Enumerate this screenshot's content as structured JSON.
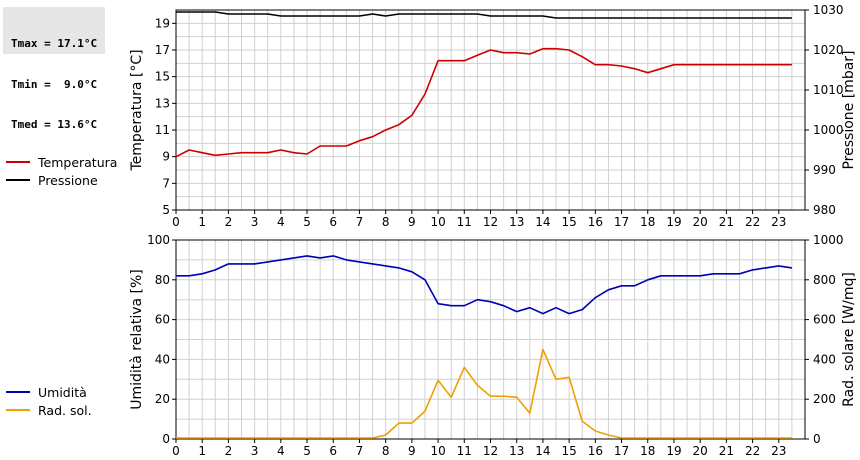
{
  "stats": {
    "tmax": "Tmax = 17.1°C",
    "tmin": "Tmin =  9.0°C",
    "tmed": "Tmed = 13.6°C"
  },
  "colors": {
    "temperature": "#cc0000",
    "pressure": "#000000",
    "humidity": "#0000b4",
    "radiation": "#f0a000",
    "grid": "#d0d0d0"
  },
  "chart_data": [
    {
      "type": "line",
      "x_label": "",
      "xlim": [
        0,
        24
      ],
      "x_ticks": [
        "0",
        "1",
        "2",
        "3",
        "4",
        "5",
        "6",
        "7",
        "8",
        "9",
        "10",
        "11",
        "12",
        "13",
        "14",
        "15",
        "16",
        "17",
        "18",
        "19",
        "20",
        "21",
        "22",
        "23"
      ],
      "y_left": {
        "label": "Temperatura [°C]",
        "lim": [
          5,
          20
        ],
        "ticks": [
          5,
          7,
          9,
          11,
          13,
          15,
          17,
          19
        ]
      },
      "y_right": {
        "label": "Pressione [mbar]",
        "lim": [
          980,
          1030
        ],
        "ticks": [
          980,
          990,
          1000,
          1010,
          1020,
          1030
        ]
      },
      "grid": true,
      "series": [
        {
          "name": "Temperatura",
          "axis": "left",
          "color": "#cc0000",
          "x": [
            0,
            0.5,
            1,
            1.5,
            2,
            2.5,
            3,
            3.5,
            4,
            4.5,
            5,
            5.5,
            6,
            6.5,
            7,
            7.5,
            8,
            8.5,
            9,
            9.5,
            10,
            10.5,
            11,
            11.5,
            12,
            12.5,
            13,
            13.5,
            14,
            14.5,
            15,
            15.5,
            16,
            16.5,
            17,
            17.5,
            18,
            18.5,
            19,
            19.5,
            20,
            20.5,
            21,
            21.5,
            22,
            22.5,
            23,
            23.5
          ],
          "values": [
            9.0,
            9.5,
            9.3,
            9.1,
            9.2,
            9.3,
            9.3,
            9.3,
            9.5,
            9.3,
            9.2,
            9.8,
            9.8,
            9.8,
            10.2,
            10.5,
            11.0,
            11.4,
            12.1,
            13.7,
            16.2,
            16.2,
            16.2,
            16.6,
            17.0,
            16.8,
            16.8,
            16.7,
            17.1,
            17.1,
            17.0,
            16.5,
            15.9,
            15.9,
            15.8,
            15.6,
            15.3,
            15.6,
            15.9,
            15.9,
            15.9,
            15.9,
            15.9,
            15.9,
            15.9,
            15.9,
            15.9,
            15.9
          ]
        },
        {
          "name": "Pressione",
          "axis": "right",
          "color": "#000000",
          "x": [
            0,
            0.5,
            1,
            1.5,
            2,
            2.5,
            3,
            3.5,
            4,
            4.5,
            5,
            5.5,
            6,
            6.5,
            7,
            7.5,
            8,
            8.5,
            9,
            9.5,
            10,
            10.5,
            11,
            11.5,
            12,
            12.5,
            13,
            13.5,
            14,
            14.5,
            15,
            15.5,
            16,
            16.5,
            17,
            17.5,
            18,
            18.5,
            19,
            19.5,
            20,
            20.5,
            21,
            21.5,
            22,
            22.5,
            23,
            23.5
          ],
          "values": [
            1029.5,
            1029.5,
            1029.5,
            1029.5,
            1029,
            1029,
            1029,
            1029,
            1028.5,
            1028.5,
            1028.5,
            1028.5,
            1028.5,
            1028.5,
            1028.5,
            1029,
            1028.5,
            1029,
            1029,
            1029,
            1029,
            1029,
            1029,
            1029,
            1028.5,
            1028.5,
            1028.5,
            1028.5,
            1028.5,
            1028,
            1028,
            1028,
            1028,
            1028,
            1028,
            1028,
            1028,
            1028,
            1028,
            1028,
            1028,
            1028,
            1028,
            1028,
            1028,
            1028,
            1028,
            1028
          ]
        }
      ]
    },
    {
      "type": "line",
      "x_label": "",
      "xlim": [
        0,
        24
      ],
      "x_ticks": [
        "0",
        "1",
        "2",
        "3",
        "4",
        "5",
        "6",
        "7",
        "8",
        "9",
        "10",
        "11",
        "12",
        "13",
        "14",
        "15",
        "16",
        "17",
        "18",
        "19",
        "20",
        "21",
        "22",
        "23"
      ],
      "y_left": {
        "label": "Umidità relativa [%]",
        "lim": [
          0,
          100
        ],
        "ticks": [
          0,
          20,
          40,
          60,
          80,
          100
        ]
      },
      "y_right": {
        "label": "Rad. solare [W/mq]",
        "lim": [
          0,
          1000
        ],
        "ticks": [
          0,
          200,
          400,
          600,
          800,
          1000
        ]
      },
      "grid": true,
      "series": [
        {
          "name": "Umidità",
          "axis": "left",
          "color": "#0000b4",
          "x": [
            0,
            0.5,
            1,
            1.5,
            2,
            2.5,
            3,
            3.5,
            4,
            4.5,
            5,
            5.5,
            6,
            6.5,
            7,
            7.5,
            8,
            8.5,
            9,
            9.5,
            10,
            10.5,
            11,
            11.5,
            12,
            12.5,
            13,
            13.5,
            14,
            14.5,
            15,
            15.5,
            16,
            16.5,
            17,
            17.5,
            18,
            18.5,
            19,
            19.5,
            20,
            20.5,
            21,
            21.5,
            22,
            22.5,
            23,
            23.5
          ],
          "values": [
            82,
            82,
            83,
            85,
            88,
            88,
            88,
            89,
            90,
            91,
            92,
            91,
            92,
            90,
            89,
            88,
            87,
            86,
            84,
            80,
            68,
            67,
            67,
            70,
            69,
            67,
            64,
            66,
            63,
            66,
            63,
            65,
            71,
            75,
            77,
            77,
            80,
            82,
            82,
            82,
            82,
            83,
            83,
            83,
            85,
            86,
            87,
            86
          ]
        },
        {
          "name": "Rad. sol.",
          "axis": "right",
          "color": "#f0a000",
          "x": [
            0,
            0.5,
            1,
            1.5,
            2,
            2.5,
            3,
            3.5,
            4,
            4.5,
            5,
            5.5,
            6,
            6.5,
            7,
            7.5,
            8,
            8.5,
            9,
            9.5,
            10,
            10.5,
            11,
            11.5,
            12,
            12.5,
            13,
            13.5,
            14,
            14.5,
            15,
            15.5,
            16,
            16.5,
            17,
            17.5,
            18,
            18.5,
            19,
            19.5,
            20,
            20.5,
            21,
            21.5,
            22,
            22.5,
            23,
            23.5
          ],
          "values": [
            5,
            5,
            5,
            5,
            5,
            5,
            5,
            5,
            5,
            5,
            5,
            5,
            5,
            5,
            5,
            5,
            20,
            80,
            80,
            140,
            295,
            210,
            360,
            270,
            215,
            215,
            210,
            130,
            450,
            300,
            310,
            90,
            40,
            20,
            5,
            5,
            5,
            5,
            5,
            5,
            5,
            5,
            5,
            5,
            5,
            5,
            5,
            5
          ]
        }
      ]
    }
  ]
}
